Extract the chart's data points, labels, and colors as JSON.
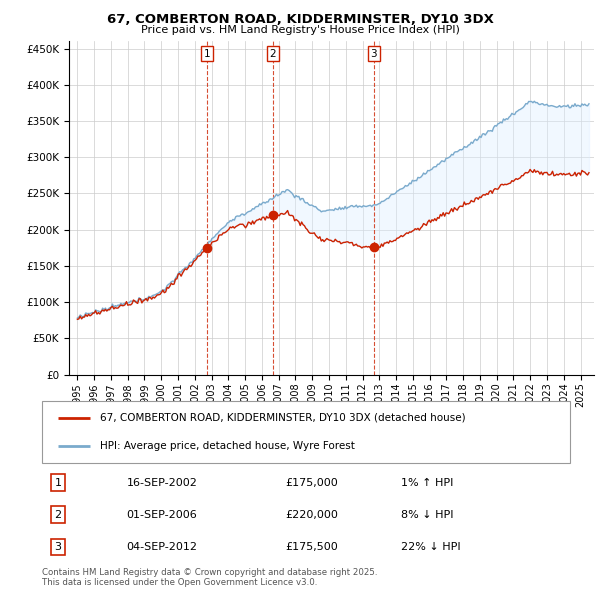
{
  "title": "67, COMBERTON ROAD, KIDDERMINSTER, DY10 3DX",
  "subtitle": "Price paid vs. HM Land Registry's House Price Index (HPI)",
  "ylim": [
    0,
    460000
  ],
  "yticks": [
    0,
    50000,
    100000,
    150000,
    200000,
    250000,
    300000,
    350000,
    400000,
    450000
  ],
  "red_line_color": "#cc2200",
  "blue_line_color": "#7aaacc",
  "fill_color": "#ddeeff",
  "sale_marker_color": "#cc2200",
  "sale_vline_color": "#cc2200",
  "purchases": [
    {
      "date_str": "16-SEP-2002",
      "date_x": 2002.71,
      "price": 175000,
      "label": "1",
      "hpi_pct": "1% ↑ HPI"
    },
    {
      "date_str": "01-SEP-2006",
      "date_x": 2006.66,
      "price": 220000,
      "label": "2",
      "hpi_pct": "8% ↓ HPI"
    },
    {
      "date_str": "04-SEP-2012",
      "date_x": 2012.67,
      "price": 175500,
      "label": "3",
      "hpi_pct": "22% ↓ HPI"
    }
  ],
  "legend_red_label": "67, COMBERTON ROAD, KIDDERMINSTER, DY10 3DX (detached house)",
  "legend_blue_label": "HPI: Average price, detached house, Wyre Forest",
  "footer": "Contains HM Land Registry data © Crown copyright and database right 2025.\nThis data is licensed under the Open Government Licence v3.0.",
  "background_color": "#ffffff",
  "grid_color": "#cccccc",
  "xlim_left": 1994.5,
  "xlim_right": 2025.8
}
